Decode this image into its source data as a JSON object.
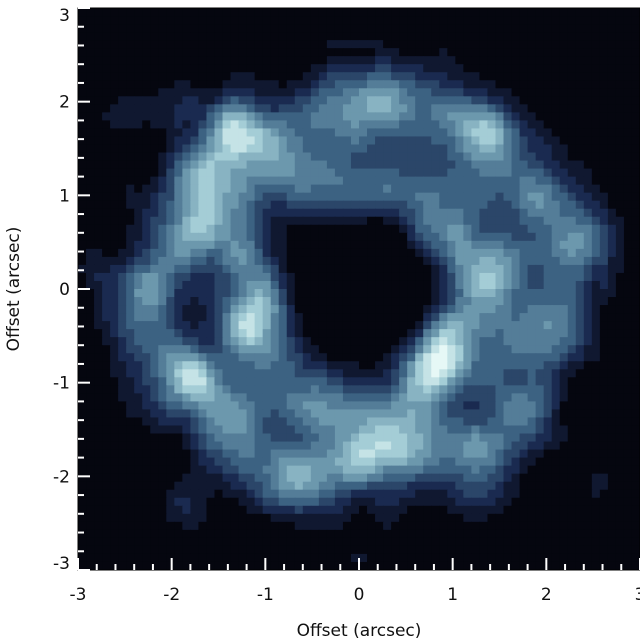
{
  "chart_data": {
    "type": "heatmap",
    "title": "",
    "xlabel": "Offset (arcsec)",
    "ylabel": "Offset (arcsec)",
    "xlim": [
      -3,
      3
    ],
    "ylim": [
      -3,
      3
    ],
    "x_ticks": [
      -3,
      -2,
      -1,
      0,
      1,
      2,
      3
    ],
    "y_ticks": [
      -3,
      -2,
      -1,
      0,
      1,
      2,
      3
    ],
    "x_tick_labels": [
      "-3",
      "-2",
      "-1",
      "0",
      "1",
      "2",
      "3"
    ],
    "y_tick_labels": [
      "-3",
      "-2",
      "-1",
      "0",
      "1",
      "2",
      "3"
    ],
    "minor_tick_step": 0.2,
    "grid": false,
    "colormap": [
      "#05060f",
      "#1a2a50",
      "#3c6282",
      "#6c98ad",
      "#a4cdd6",
      "#e6f8f6"
    ],
    "contour_levels": 10,
    "structure": {
      "inner_hole_radius": 0.72,
      "inner_ring_radius": 1.25,
      "outer_ring_radius": 2.05
    },
    "bright_spots": [
      {
        "x": -1.35,
        "y": 1.75,
        "value": 1.0
      },
      {
        "x": 0.1,
        "y": 2.15,
        "value": 0.85
      },
      {
        "x": 1.4,
        "y": 1.7,
        "value": 0.8
      },
      {
        "x": -0.65,
        "y": -1.95,
        "value": 1.0
      },
      {
        "x": -1.75,
        "y": -0.95,
        "value": 0.9
      },
      {
        "x": -1.7,
        "y": 0.9,
        "value": 0.75
      },
      {
        "x": 1.35,
        "y": 0.25,
        "value": 0.8
      },
      {
        "x": 0.9,
        "y": -0.8,
        "value": 0.7
      },
      {
        "x": -1.2,
        "y": -0.35,
        "value": 0.7
      },
      {
        "x": -1.85,
        "y": -2.35,
        "value": 0.75
      },
      {
        "x": 2.6,
        "y": -2.1,
        "value": 0.7
      },
      {
        "x": -2.8,
        "y": 0.15,
        "value": 0.45
      },
      {
        "x": 2.45,
        "y": 0.55,
        "value": 0.6
      },
      {
        "x": 1.3,
        "y": -2.2,
        "value": 0.55
      },
      {
        "x": -2.65,
        "y": 1.8,
        "value": 0.55
      },
      {
        "x": 0.0,
        "y": -2.9,
        "value": 0.5
      },
      {
        "x": -2.55,
        "y": 2.45,
        "value": 0.45
      }
    ]
  }
}
